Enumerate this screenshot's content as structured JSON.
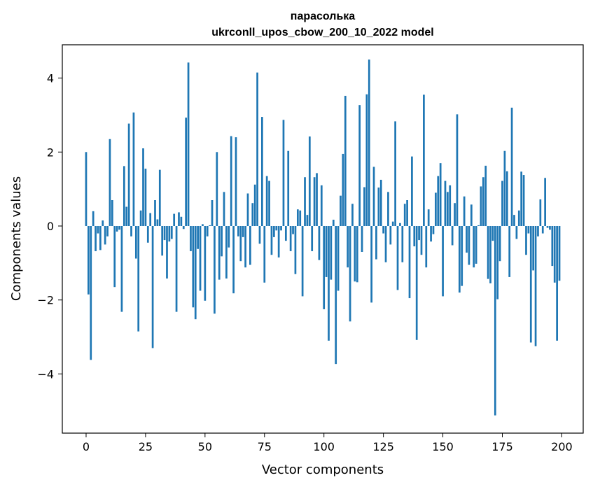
{
  "chart_data": {
    "type": "bar",
    "title_line1": "парасолька",
    "title_line2": "ukrconll_upos_cbow_200_10_2022 model",
    "xlabel": "Vector components",
    "ylabel": "Components values",
    "xlim": [
      -10,
      209
    ],
    "ylim": [
      -5.6,
      4.9
    ],
    "bar_width": 0.8,
    "bar_color": "#1f77b4",
    "xticks": [
      0,
      25,
      50,
      75,
      100,
      125,
      150,
      175,
      200
    ],
    "xtick_labels": [
      "0",
      "25",
      "50",
      "75",
      "100",
      "125",
      "150",
      "175",
      "200"
    ],
    "yticks": [
      -4,
      -2,
      0,
      2,
      4
    ],
    "ytick_labels": [
      "−4",
      "−2",
      "0",
      "2",
      "4"
    ],
    "x": [
      0,
      1,
      2,
      3,
      4,
      5,
      6,
      7,
      8,
      9,
      10,
      11,
      12,
      13,
      14,
      15,
      16,
      17,
      18,
      19,
      20,
      21,
      22,
      23,
      24,
      25,
      26,
      27,
      28,
      29,
      30,
      31,
      32,
      33,
      34,
      35,
      36,
      37,
      38,
      39,
      40,
      41,
      42,
      43,
      44,
      45,
      46,
      47,
      48,
      49,
      50,
      51,
      52,
      53,
      54,
      55,
      56,
      57,
      58,
      59,
      60,
      61,
      62,
      63,
      64,
      65,
      66,
      67,
      68,
      69,
      70,
      71,
      72,
      73,
      74,
      75,
      76,
      77,
      78,
      79,
      80,
      81,
      82,
      83,
      84,
      85,
      86,
      87,
      88,
      89,
      90,
      91,
      92,
      93,
      94,
      95,
      96,
      97,
      98,
      99,
      100,
      101,
      102,
      103,
      104,
      105,
      106,
      107,
      108,
      109,
      110,
      111,
      112,
      113,
      114,
      115,
      116,
      117,
      118,
      119,
      120,
      121,
      122,
      123,
      124,
      125,
      126,
      127,
      128,
      129,
      130,
      131,
      132,
      133,
      134,
      135,
      136,
      137,
      138,
      139,
      140,
      141,
      142,
      143,
      144,
      145,
      146,
      147,
      148,
      149,
      150,
      151,
      152,
      153,
      154,
      155,
      156,
      157,
      158,
      159,
      160,
      161,
      162,
      163,
      164,
      165,
      166,
      167,
      168,
      169,
      170,
      171,
      172,
      173,
      174,
      175,
      176,
      177,
      178,
      179,
      180,
      181,
      182,
      183,
      184,
      185,
      186,
      187,
      188,
      189,
      190,
      191,
      192,
      193,
      194,
      195,
      196,
      197,
      198,
      199
    ],
    "values": [
      2.0,
      -1.85,
      -3.62,
      0.4,
      -0.68,
      -0.2,
      -0.65,
      0.15,
      -0.5,
      -0.28,
      2.35,
      0.7,
      -1.65,
      -0.15,
      -0.1,
      -2.32,
      1.62,
      0.52,
      2.77,
      -0.28,
      3.07,
      -0.88,
      -2.85,
      0.42,
      2.1,
      1.55,
      -0.45,
      0.35,
      -3.3,
      0.7,
      0.18,
      1.52,
      -0.8,
      -0.38,
      -1.42,
      -0.42,
      -0.35,
      0.33,
      -2.32,
      0.37,
      0.25,
      -0.08,
      2.93,
      4.42,
      -0.68,
      -2.2,
      -2.52,
      -0.62,
      -1.75,
      0.05,
      -2.02,
      -0.28,
      0.02,
      0.7,
      -2.37,
      2.0,
      -1.45,
      -0.82,
      0.92,
      -1.42,
      -0.58,
      2.43,
      -1.82,
      2.4,
      -0.28,
      -0.95,
      -0.3,
      -1.12,
      0.88,
      -1.05,
      0.62,
      1.12,
      4.15,
      -0.48,
      2.95,
      -1.53,
      1.35,
      1.22,
      -0.78,
      -0.3,
      -0.12,
      -0.85,
      -0.12,
      2.87,
      -0.4,
      2.03,
      -0.68,
      -0.22,
      -1.3,
      0.45,
      0.42,
      -1.9,
      1.32,
      0.3,
      2.42,
      -0.68,
      1.32,
      1.43,
      -0.92,
      1.1,
      -2.25,
      -1.38,
      -3.1,
      -1.45,
      0.17,
      -3.73,
      -1.75,
      0.82,
      1.95,
      3.52,
      -1.12,
      -2.58,
      0.6,
      -1.5,
      -1.52,
      3.27,
      -0.7,
      1.05,
      3.56,
      4.5,
      -2.07,
      1.6,
      -0.9,
      1.04,
      1.25,
      -0.2,
      -0.98,
      0.92,
      -0.5,
      0.12,
      2.83,
      -1.73,
      0.08,
      -0.98,
      0.6,
      0.7,
      -1.95,
      1.88,
      -0.55,
      -3.08,
      -0.38,
      -0.78,
      3.55,
      -1.12,
      0.45,
      -0.42,
      -0.22,
      0.9,
      1.35,
      1.7,
      -1.9,
      1.22,
      0.92,
      1.1,
      -0.52,
      0.62,
      3.02,
      -1.8,
      -1.62,
      0.8,
      -0.72,
      -1.05,
      0.58,
      -1.12,
      -1.02,
      0.02,
      1.07,
      1.32,
      1.63,
      -1.43,
      -1.55,
      -0.4,
      -5.12,
      -1.98,
      -0.95,
      1.22,
      2.03,
      1.48,
      -1.38,
      3.2,
      0.3,
      -0.35,
      0.42,
      1.47,
      1.38,
      -0.78,
      -0.2,
      -3.15,
      -1.2,
      -3.25,
      -0.28,
      0.72,
      -0.2,
      1.3,
      -0.05,
      -0.1,
      -1.08,
      -1.53,
      -3.1,
      -1.48
    ]
  }
}
